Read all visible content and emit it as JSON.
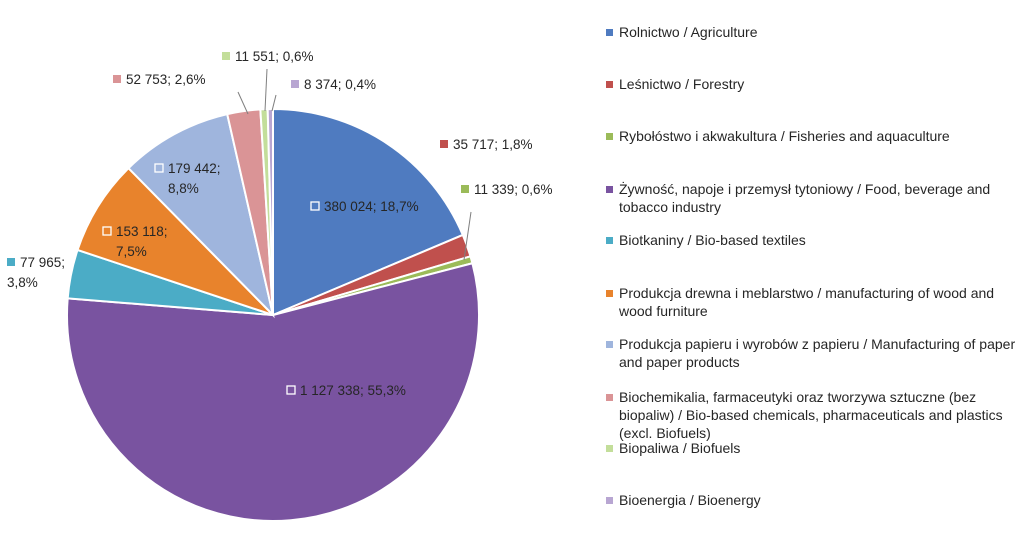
{
  "chart_data": {
    "type": "pie",
    "title": "",
    "legend_position": "right",
    "slices": [
      {
        "label": "Rolnictwo / Agriculture",
        "value": 380024,
        "percent": 18.7,
        "data_label": "380 024; 18,7%",
        "color": "#4F7BC0"
      },
      {
        "label": "Leśnictwo / Forestry",
        "value": 35717,
        "percent": 1.8,
        "data_label": "35 717; 1,8%",
        "color": "#C0504D"
      },
      {
        "label": "Rybołóstwo i akwakultura / Fisheries and aquaculture",
        "value": 11339,
        "percent": 0.6,
        "data_label": "11 339; 0,6%",
        "color": "#9BBB59"
      },
      {
        "label": "Żywność, napoje i przemysł tytoniowy / Food, beverage and tobacco industry",
        "value": 1127338,
        "percent": 55.3,
        "data_label": "1 127 338; 55,3%",
        "color": "#7953A0"
      },
      {
        "label": "Biotkaniny / Bio-based textiles",
        "value": 77965,
        "percent": 3.8,
        "data_label": "77 965; 3,8%",
        "color": "#4BACC6"
      },
      {
        "label": "Produkcja drewna i meblarstwo / manufacturing of wood and wood furniture",
        "value": 153118,
        "percent": 7.5,
        "data_label": "153 118; 7,5%",
        "color": "#E8832C"
      },
      {
        "label": "Produkcja papieru i wyrobów z papieru / Manufacturing of paper and paper products",
        "value": 179442,
        "percent": 8.8,
        "data_label": "179 442; 8,8%",
        "color": "#9FB5DD"
      },
      {
        "label": "Biochemikalia, farmaceutyki oraz tworzywa sztuczne (bez biopaliw) / Bio-based chemicals, pharmaceuticals and plastics (excl. Biofuels)",
        "value": 52753,
        "percent": 2.6,
        "data_label": "52 753; 2,6%",
        "color": "#DA9496"
      },
      {
        "label": "Biopaliwa / Biofuels",
        "value": 11551,
        "percent": 0.6,
        "data_label": "11 551; 0,6%",
        "color": "#C3DE9A"
      },
      {
        "label": "Bioenergia / Bioenergy",
        "value": 8374,
        "percent": 0.4,
        "data_label": "8 374; 0,4%",
        "color": "#B8A6D2"
      }
    ]
  }
}
